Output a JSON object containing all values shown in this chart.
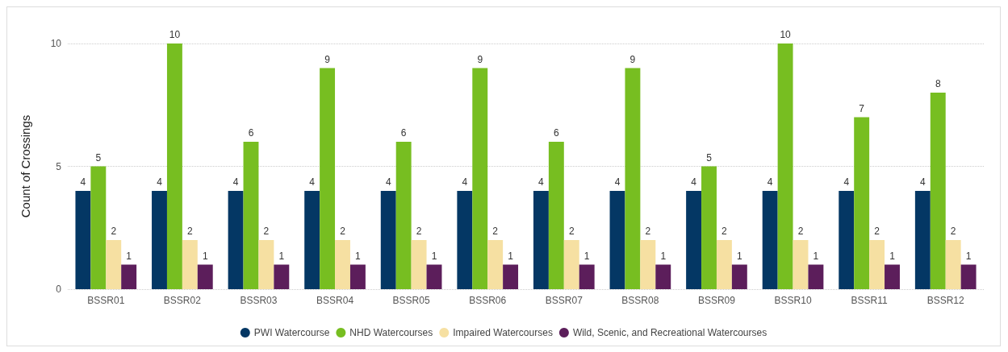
{
  "chart_data": {
    "type": "bar",
    "ylabel": "Count of Crossings",
    "categories": [
      "BSSR01",
      "BSSR02",
      "BSSR03",
      "BSSR04",
      "BSSR05",
      "BSSR06",
      "BSSR07",
      "BSSR08",
      "BSSR09",
      "BSSR10",
      "BSSR11",
      "BSSR12"
    ],
    "series": [
      {
        "name": "PWI Watercourse",
        "color": "#043764",
        "values": [
          4,
          4,
          4,
          4,
          4,
          4,
          4,
          4,
          4,
          4,
          4,
          4
        ]
      },
      {
        "name": "NHD Watercourses",
        "color": "#77be21",
        "values": [
          5,
          10,
          6,
          9,
          6,
          9,
          6,
          9,
          5,
          10,
          7,
          8
        ]
      },
      {
        "name": "Impaired Watercourses",
        "color": "#f6e0a2",
        "values": [
          2,
          2,
          2,
          2,
          2,
          2,
          2,
          2,
          2,
          2,
          2,
          2
        ]
      },
      {
        "name": "Wild, Scenic, and Recreational Watercourses",
        "color": "#5c1e5b",
        "values": [
          1,
          1,
          1,
          1,
          1,
          1,
          1,
          1,
          1,
          1,
          1,
          1
        ]
      }
    ],
    "ylim": [
      0,
      10
    ],
    "yticks": [
      0,
      5,
      10
    ],
    "grid": "y",
    "legend": "bottom",
    "data_labels": true
  }
}
